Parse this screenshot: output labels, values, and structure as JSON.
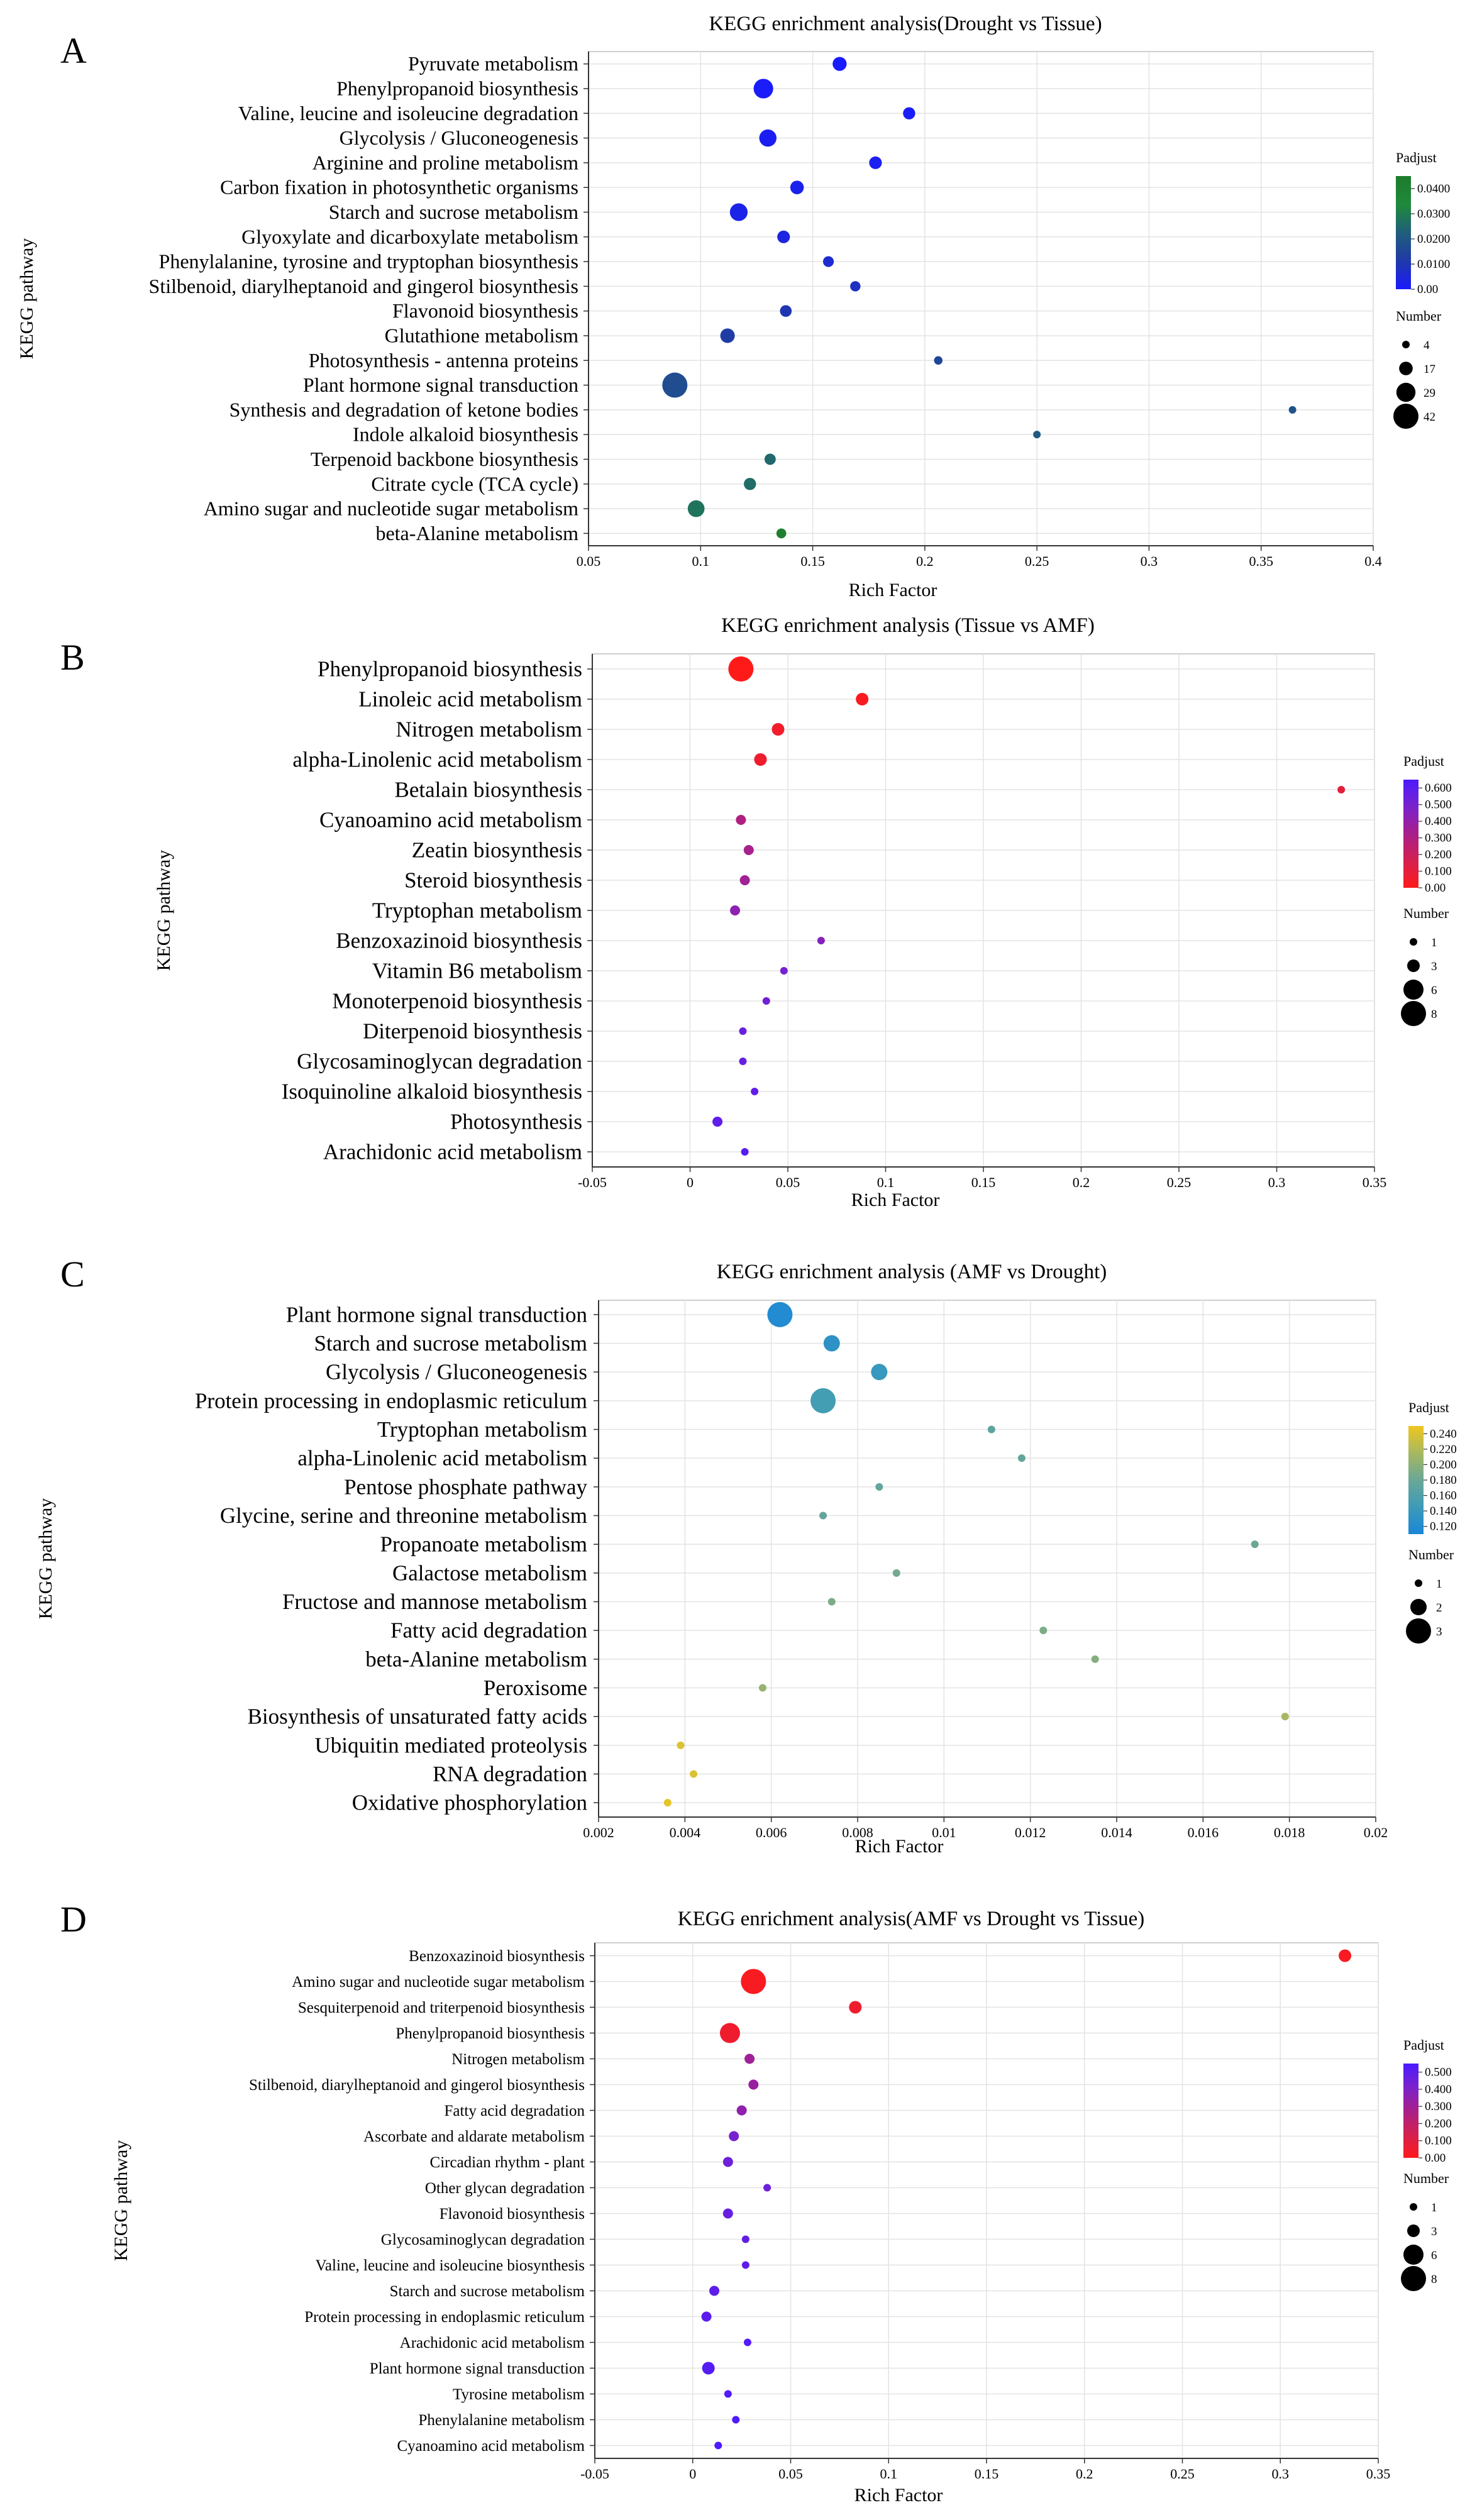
{
  "figure": {
    "panels": [
      "A",
      "B",
      "C",
      "D"
    ]
  },
  "chart_data": [
    {
      "type": "scatter",
      "panel": "A",
      "title": "KEGG enrichment analysis(Drought vs Tissue)",
      "xlabel": "Rich Factor",
      "ylabel": "KEGG pathway",
      "xlim": [
        0.05,
        0.4
      ],
      "xticks": [
        0.05,
        0.1,
        0.15,
        0.2,
        0.25,
        0.3,
        0.35,
        0.4
      ],
      "xtick_labels": [
        "0.05",
        "0.1",
        "0.15",
        "0.2",
        "0.25",
        "0.3",
        "0.35",
        "0.4"
      ],
      "grid": true,
      "color_legend": {
        "title": "Padjust",
        "min": 0,
        "max": 0.045,
        "colors": [
          "#1a1aff",
          "#1f3aa8",
          "#205e7a",
          "#1f8a3a",
          "#1e7b2c"
        ],
        "ticks": [
          0.0,
          0.01,
          0.02,
          0.03,
          0.04
        ],
        "tick_labels": [
          "0.00",
          "0.0100",
          "0.0200",
          "0.0300",
          "0.0400"
        ]
      },
      "size_legend": {
        "title": "Number",
        "min": 4,
        "max": 42,
        "values": [
          4,
          17,
          29,
          42
        ],
        "labels": [
          "4",
          "17",
          "29",
          "42"
        ]
      },
      "points": [
        {
          "pathway": "Pyruvate metabolism",
          "rich_factor": 0.162,
          "number": 18,
          "padjust": 0.0005
        },
        {
          "pathway": "Phenylpropanoid biosynthesis",
          "rich_factor": 0.128,
          "number": 30,
          "padjust": 0.0008
        },
        {
          "pathway": "Valine, leucine and isoleucine degradation",
          "rich_factor": 0.193,
          "number": 14,
          "padjust": 0.0012
        },
        {
          "pathway": "Glycolysis / Gluconeogenesis",
          "rich_factor": 0.13,
          "number": 25,
          "padjust": 0.0015
        },
        {
          "pathway": "Arginine and proline metabolism",
          "rich_factor": 0.178,
          "number": 15,
          "padjust": 0.002
        },
        {
          "pathway": "Carbon fixation in photosynthetic organisms",
          "rich_factor": 0.143,
          "number": 17,
          "padjust": 0.0025
        },
        {
          "pathway": "Starch and sucrose metabolism",
          "rich_factor": 0.117,
          "number": 26,
          "padjust": 0.003
        },
        {
          "pathway": "Glyoxylate and dicarboxylate metabolism",
          "rich_factor": 0.137,
          "number": 15,
          "padjust": 0.004
        },
        {
          "pathway": "Phenylalanine, tyrosine and tryptophan biosynthesis",
          "rich_factor": 0.157,
          "number": 11,
          "padjust": 0.006
        },
        {
          "pathway": "Stilbenoid, diarylheptanoid and gingerol biosynthesis",
          "rich_factor": 0.169,
          "number": 10,
          "padjust": 0.008
        },
        {
          "pathway": "Flavonoid biosynthesis",
          "rich_factor": 0.138,
          "number": 13,
          "padjust": 0.01
        },
        {
          "pathway": "Glutathione metabolism",
          "rich_factor": 0.112,
          "number": 19,
          "padjust": 0.012
        },
        {
          "pathway": "Photosynthesis - antenna proteins",
          "rich_factor": 0.206,
          "number": 6,
          "padjust": 0.015
        },
        {
          "pathway": "Plant hormone signal transduction",
          "rich_factor": 0.0885,
          "number": 42,
          "padjust": 0.017
        },
        {
          "pathway": "Synthesis and degradation of ketone bodies",
          "rich_factor": 0.364,
          "number": 4,
          "padjust": 0.019
        },
        {
          "pathway": "Indole alkaloid biosynthesis",
          "rich_factor": 0.25,
          "number": 4,
          "padjust": 0.021
        },
        {
          "pathway": "Terpenoid backbone biosynthesis",
          "rich_factor": 0.131,
          "number": 12,
          "padjust": 0.025
        },
        {
          "pathway": "Citrate cycle (TCA cycle)",
          "rich_factor": 0.122,
          "number": 14,
          "padjust": 0.026
        },
        {
          "pathway": "Amino sugar and nucleotide sugar metabolism",
          "rich_factor": 0.098,
          "number": 24,
          "padjust": 0.028
        },
        {
          "pathway": "beta-Alanine metabolism",
          "rich_factor": 0.136,
          "number": 9,
          "padjust": 0.042
        }
      ]
    },
    {
      "type": "scatter",
      "panel": "B",
      "title": "KEGG enrichment analysis (Tissue vs AMF)",
      "xlabel": "Rich Factor",
      "ylabel": "KEGG pathway",
      "xlim": [
        -0.05,
        0.35
      ],
      "xticks": [
        -0.05,
        0,
        0.05,
        0.1,
        0.15,
        0.2,
        0.25,
        0.3,
        0.35
      ],
      "xtick_labels": [
        "-0.05",
        "0",
        "0.05",
        "0.1",
        "0.15",
        "0.2",
        "0.25",
        "0.3",
        "0.35"
      ],
      "grid": true,
      "color_legend": {
        "title": "Padjust",
        "min": 0,
        "max": 0.65,
        "colors": [
          "#ff1a1a",
          "#d42050",
          "#a8208a",
          "#7a22cc",
          "#4b1aff"
        ],
        "ticks": [
          0.0,
          0.1,
          0.2,
          0.3,
          0.4,
          0.5,
          0.6
        ],
        "tick_labels": [
          "0.00",
          "0.100",
          "0.200",
          "0.300",
          "0.400",
          "0.500",
          "0.600"
        ]
      },
      "size_legend": {
        "title": "Number",
        "min": 1,
        "max": 8,
        "values": [
          1,
          3,
          6,
          8
        ],
        "labels": [
          "1",
          "3",
          "6",
          "8"
        ]
      },
      "points": [
        {
          "pathway": "Phenylpropanoid biosynthesis",
          "rich_factor": 0.026,
          "number": 8,
          "padjust": 0.0
        },
        {
          "pathway": "Linoleic acid metabolism",
          "rich_factor": 0.088,
          "number": 3,
          "padjust": 0.02
        },
        {
          "pathway": "Nitrogen metabolism",
          "rich_factor": 0.045,
          "number": 3,
          "padjust": 0.05
        },
        {
          "pathway": "alpha-Linolenic acid metabolism",
          "rich_factor": 0.036,
          "number": 3,
          "padjust": 0.06
        },
        {
          "pathway": "Betalain biosynthesis",
          "rich_factor": 0.333,
          "number": 1,
          "padjust": 0.1
        },
        {
          "pathway": "Cyanoamino acid metabolism",
          "rich_factor": 0.026,
          "number": 2,
          "padjust": 0.3
        },
        {
          "pathway": "Zeatin biosynthesis",
          "rich_factor": 0.03,
          "number": 2,
          "padjust": 0.33
        },
        {
          "pathway": "Steroid biosynthesis",
          "rich_factor": 0.028,
          "number": 2,
          "padjust": 0.35
        },
        {
          "pathway": "Tryptophan metabolism",
          "rich_factor": 0.023,
          "number": 2,
          "padjust": 0.42
        },
        {
          "pathway": "Benzoxazinoid biosynthesis",
          "rich_factor": 0.067,
          "number": 1,
          "padjust": 0.45
        },
        {
          "pathway": "Vitamin B6 metabolism",
          "rich_factor": 0.048,
          "number": 1,
          "padjust": 0.5
        },
        {
          "pathway": "Monoterpenoid biosynthesis",
          "rich_factor": 0.039,
          "number": 1,
          "padjust": 0.52
        },
        {
          "pathway": "Diterpenoid biosynthesis",
          "rich_factor": 0.027,
          "number": 1,
          "padjust": 0.55
        },
        {
          "pathway": "Glycosaminoglycan degradation",
          "rich_factor": 0.027,
          "number": 1,
          "padjust": 0.56
        },
        {
          "pathway": "Isoquinoline alkaloid biosynthesis",
          "rich_factor": 0.033,
          "number": 1,
          "padjust": 0.57
        },
        {
          "pathway": "Photosynthesis",
          "rich_factor": 0.014,
          "number": 2,
          "padjust": 0.58
        },
        {
          "pathway": "Arachidonic acid metabolism",
          "rich_factor": 0.028,
          "number": 1,
          "padjust": 0.6
        }
      ]
    },
    {
      "type": "scatter",
      "panel": "C",
      "title": "KEGG enrichment analysis (AMF vs Drought)",
      "xlabel": "Rich Factor",
      "ylabel": "KEGG pathway",
      "xlim": [
        0.002,
        0.02
      ],
      "xticks": [
        0.002,
        0.004,
        0.006,
        0.008,
        0.01,
        0.012,
        0.014,
        0.016,
        0.018,
        0.02
      ],
      "xtick_labels": [
        "0.002",
        "0.004",
        "0.006",
        "0.008",
        "0.01",
        "0.012",
        "0.014",
        "0.016",
        "0.018",
        "0.02"
      ],
      "grid": true,
      "color_legend": {
        "title": "Padjust",
        "min": 0.11,
        "max": 0.25,
        "colors": [
          "#1a86d8",
          "#3d9bb8",
          "#6aa796",
          "#a7b860",
          "#f0c61e"
        ],
        "ticks": [
          0.12,
          0.14,
          0.16,
          0.18,
          0.2,
          0.22,
          0.24
        ],
        "tick_labels": [
          "0.120",
          "0.140",
          "0.160",
          "0.180",
          "0.200",
          "0.220",
          "0.240"
        ]
      },
      "size_legend": {
        "title": "Number",
        "min": 1,
        "max": 3,
        "values": [
          1,
          2,
          3
        ],
        "labels": [
          "1",
          "2",
          "3"
        ]
      },
      "points": [
        {
          "pathway": "Plant hormone signal transduction",
          "rich_factor": 0.0062,
          "number": 3,
          "padjust": 0.118
        },
        {
          "pathway": "Starch and sucrose metabolism",
          "rich_factor": 0.0074,
          "number": 2,
          "padjust": 0.13
        },
        {
          "pathway": "Glycolysis / Gluconeogenesis",
          "rich_factor": 0.0085,
          "number": 2,
          "padjust": 0.14
        },
        {
          "pathway": "Protein processing in endoplasmic reticulum",
          "rich_factor": 0.0072,
          "number": 3,
          "padjust": 0.15
        },
        {
          "pathway": "Tryptophan metabolism",
          "rich_factor": 0.0111,
          "number": 1,
          "padjust": 0.17
        },
        {
          "pathway": "alpha-Linolenic acid metabolism",
          "rich_factor": 0.0118,
          "number": 1,
          "padjust": 0.175
        },
        {
          "pathway": "Pentose phosphate pathway",
          "rich_factor": 0.0085,
          "number": 1,
          "padjust": 0.175
        },
        {
          "pathway": "Glycine, serine and threonine metabolism",
          "rich_factor": 0.0072,
          "number": 1,
          "padjust": 0.175
        },
        {
          "pathway": "Propanoate metabolism",
          "rich_factor": 0.0172,
          "number": 1,
          "padjust": 0.18
        },
        {
          "pathway": "Galactose metabolism",
          "rich_factor": 0.0089,
          "number": 1,
          "padjust": 0.185
        },
        {
          "pathway": "Fructose and mannose metabolism",
          "rich_factor": 0.0074,
          "number": 1,
          "padjust": 0.19
        },
        {
          "pathway": "Fatty acid degradation",
          "rich_factor": 0.0123,
          "number": 1,
          "padjust": 0.19
        },
        {
          "pathway": "beta-Alanine metabolism",
          "rich_factor": 0.0135,
          "number": 1,
          "padjust": 0.195
        },
        {
          "pathway": "Peroxisome",
          "rich_factor": 0.0058,
          "number": 1,
          "padjust": 0.205
        },
        {
          "pathway": "Biosynthesis of unsaturated fatty acids",
          "rich_factor": 0.0179,
          "number": 1,
          "padjust": 0.215
        },
        {
          "pathway": "Ubiquitin mediated proteolysis",
          "rich_factor": 0.0039,
          "number": 1,
          "padjust": 0.24
        },
        {
          "pathway": "RNA degradation",
          "rich_factor": 0.0042,
          "number": 1,
          "padjust": 0.24
        },
        {
          "pathway": "Oxidative phosphorylation",
          "rich_factor": 0.0036,
          "number": 1,
          "padjust": 0.245
        }
      ]
    },
    {
      "type": "scatter",
      "panel": "D",
      "title": "KEGG enrichment analysis(AMF vs Drought vs Tissue)",
      "xlabel": "Rich Factor",
      "ylabel": "KEGG pathway",
      "xlim": [
        -0.05,
        0.35
      ],
      "xticks": [
        -0.05,
        0,
        0.05,
        0.1,
        0.15,
        0.2,
        0.25,
        0.3,
        0.35
      ],
      "xtick_labels": [
        "-0.05",
        "0",
        "0.05",
        "0.1",
        "0.15",
        "0.2",
        "0.25",
        "0.3",
        "0.35"
      ],
      "grid": true,
      "color_legend": {
        "title": "Padjust",
        "min": 0,
        "max": 0.55,
        "colors": [
          "#ff1a1a",
          "#d42050",
          "#a8208a",
          "#7a22cc",
          "#4b1aff"
        ],
        "ticks": [
          0.0,
          0.1,
          0.2,
          0.3,
          0.4,
          0.5
        ],
        "tick_labels": [
          "0.00",
          "0.100",
          "0.200",
          "0.300",
          "0.400",
          "0.500"
        ]
      },
      "size_legend": {
        "title": "Number",
        "min": 1,
        "max": 8,
        "values": [
          1,
          3,
          6,
          8
        ],
        "labels": [
          "1",
          "3",
          "6",
          "8"
        ]
      },
      "points": [
        {
          "pathway": "Benzoxazinoid biosynthesis",
          "rich_factor": 0.333,
          "number": 3,
          "padjust": 0.02
        },
        {
          "pathway": "Amino sugar and nucleotide sugar metabolism",
          "rich_factor": 0.031,
          "number": 8,
          "padjust": 0.02
        },
        {
          "pathway": "Sesquiterpenoid and triterpenoid biosynthesis",
          "rich_factor": 0.083,
          "number": 3,
          "padjust": 0.05
        },
        {
          "pathway": "Phenylpropanoid biosynthesis",
          "rich_factor": 0.019,
          "number": 6,
          "padjust": 0.05
        },
        {
          "pathway": "Nitrogen metabolism",
          "rich_factor": 0.029,
          "number": 2,
          "padjust": 0.3
        },
        {
          "pathway": "Stilbenoid, diarylheptanoid and gingerol biosynthesis",
          "rich_factor": 0.031,
          "number": 2,
          "padjust": 0.32
        },
        {
          "pathway": "Fatty acid degradation",
          "rich_factor": 0.025,
          "number": 2,
          "padjust": 0.35
        },
        {
          "pathway": "Ascorbate and aldarate metabolism",
          "rich_factor": 0.021,
          "number": 2,
          "padjust": 0.42
        },
        {
          "pathway": "Circadian rhythm - plant",
          "rich_factor": 0.018,
          "number": 2,
          "padjust": 0.45
        },
        {
          "pathway": "Other glycan degradation",
          "rich_factor": 0.038,
          "number": 1,
          "padjust": 0.45
        },
        {
          "pathway": "Flavonoid biosynthesis",
          "rich_factor": 0.018,
          "number": 2,
          "padjust": 0.47
        },
        {
          "pathway": "Glycosaminoglycan degradation",
          "rich_factor": 0.027,
          "number": 1,
          "padjust": 0.48
        },
        {
          "pathway": "Valine, leucine and isoleucine biosynthesis",
          "rich_factor": 0.027,
          "number": 1,
          "padjust": 0.49
        },
        {
          "pathway": "Starch and sucrose metabolism",
          "rich_factor": 0.011,
          "number": 2,
          "padjust": 0.5
        },
        {
          "pathway": "Protein processing in endoplasmic reticulum",
          "rich_factor": 0.007,
          "number": 2,
          "padjust": 0.5
        },
        {
          "pathway": "Arachidonic acid metabolism",
          "rich_factor": 0.028,
          "number": 1,
          "padjust": 0.52
        },
        {
          "pathway": "Plant hormone signal transduction",
          "rich_factor": 0.008,
          "number": 3,
          "padjust": 0.52
        },
        {
          "pathway": "Tyrosine metabolism",
          "rich_factor": 0.018,
          "number": 1,
          "padjust": 0.53
        },
        {
          "pathway": "Phenylalanine metabolism",
          "rich_factor": 0.022,
          "number": 1,
          "padjust": 0.54
        },
        {
          "pathway": "Cyanoamino acid metabolism",
          "rich_factor": 0.013,
          "number": 1,
          "padjust": 0.55
        }
      ]
    }
  ]
}
